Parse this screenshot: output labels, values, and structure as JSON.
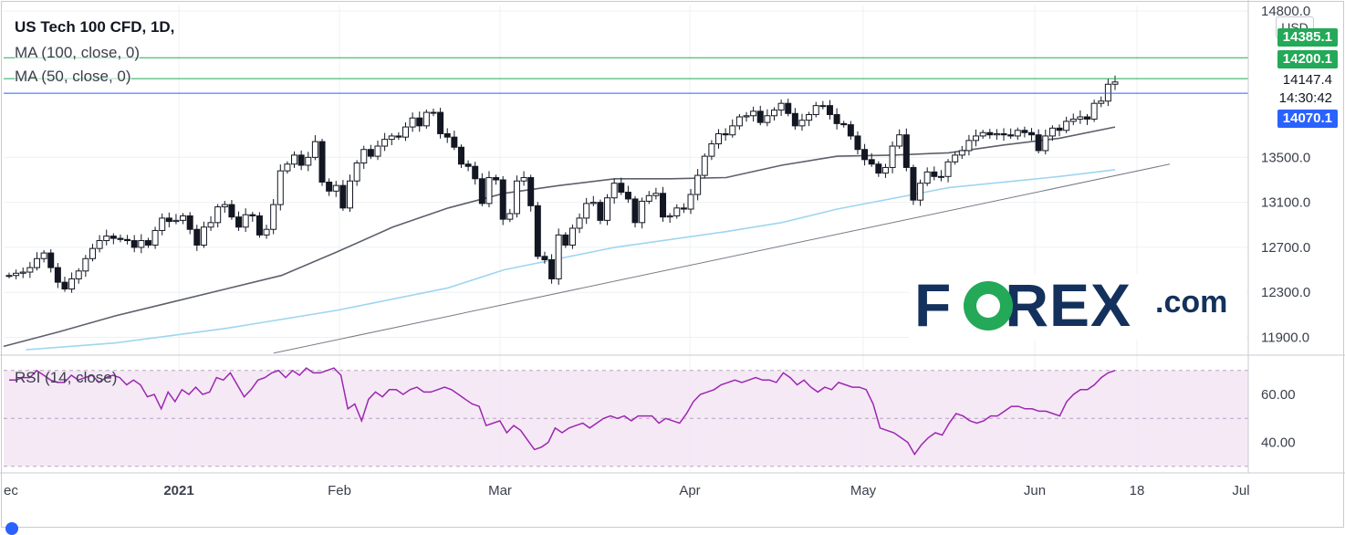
{
  "header": {
    "title": "US Tech 100 CFD, 1D, ",
    "ma100_label": "MA (100, close, 0)",
    "ma50_label": "MA (50, close, 0)",
    "rsi_label": "RSI (14, close)",
    "currency": "USD"
  },
  "price_tags": {
    "top_tag": "14385.1",
    "top_tag_color": "#23a957",
    "ma_tag": "14200.1",
    "ma_tag_color": "#23a957",
    "last_price": "14147.4",
    "countdown": "14:30:42",
    "current_tag": "14070.1",
    "current_tag_color": "#2962ff"
  },
  "logo": {
    "text": "FOREX",
    "suffix": ".com"
  },
  "chart_data": [
    {
      "type": "candlestick",
      "title": "US Tech 100 CFD, 1D",
      "y_ticks": [
        "14800.0",
        "13500.0",
        "13100.0",
        "12700.0",
        "12300.0",
        "11900.0"
      ],
      "y_tick_values": [
        14800,
        13500,
        13100,
        12700,
        12300,
        11900
      ],
      "x_ticks": [
        "ec",
        "2021",
        "Feb",
        "Mar",
        "Apr",
        "May",
        "Jun",
        "18",
        "Jul"
      ],
      "ylim": [
        11750,
        14850
      ],
      "horizontal_lines": [
        14385.1,
        14200.1,
        14070.1
      ],
      "close_series_start": 12450,
      "close_series": [
        12450,
        12470,
        12480,
        12520,
        12600,
        12650,
        12520,
        12390,
        12330,
        12420,
        12490,
        12600,
        12690,
        12760,
        12800,
        12780,
        12770,
        12760,
        12700,
        12760,
        12720,
        12850,
        12960,
        12930,
        12940,
        12980,
        12860,
        12720,
        12880,
        12920,
        13060,
        13080,
        12970,
        12880,
        12990,
        12980,
        12810,
        12860,
        13080,
        13380,
        13440,
        13520,
        13430,
        13500,
        13640,
        13280,
        13200,
        13250,
        13050,
        13290,
        13450,
        13570,
        13510,
        13600,
        13660,
        13690,
        13680,
        13770,
        13850,
        13780,
        13900,
        13900,
        13710,
        13680,
        13590,
        13440,
        13420,
        13310,
        13090,
        13320,
        13300,
        12950,
        13000,
        13290,
        13320,
        13070,
        12620,
        12590,
        12420,
        12810,
        12720,
        12870,
        12960,
        13090,
        13100,
        12940,
        13140,
        13270,
        13190,
        13130,
        12920,
        13110,
        13160,
        13180,
        12970,
        12980,
        13050,
        13040,
        13170,
        13340,
        13510,
        13620,
        13710,
        13700,
        13780,
        13860,
        13870,
        13910,
        13810,
        13870,
        13920,
        13980,
        13890,
        13780,
        13830,
        13880,
        13960,
        13960,
        13880,
        13800,
        13790,
        13690,
        13570,
        13480,
        13440,
        13360,
        13410,
        13600,
        13700,
        13410,
        13120,
        13270,
        13370,
        13330,
        13330,
        13460,
        13520,
        13560,
        13650,
        13690,
        13720,
        13700,
        13710,
        13700,
        13690,
        13740,
        13720,
        13700,
        13560,
        13690,
        13760,
        13740,
        13820,
        13840,
        13860,
        13840,
        13980,
        14000,
        14150,
        14170
      ]
    },
    {
      "type": "line",
      "title": "MA (100, close, 0)",
      "color": "#9fd5f0",
      "points": [
        [
          0.02,
          11790
        ],
        [
          0.1,
          11850
        ],
        [
          0.2,
          11980
        ],
        [
          0.3,
          12140
        ],
        [
          0.4,
          12340
        ],
        [
          0.45,
          12500
        ],
        [
          0.55,
          12700
        ],
        [
          0.65,
          12840
        ],
        [
          0.7,
          12920
        ],
        [
          0.75,
          13040
        ],
        [
          0.85,
          13230
        ],
        [
          0.95,
          13330
        ],
        [
          1.0,
          13390
        ]
      ]
    },
    {
      "type": "line",
      "title": "MA (50, close, 0)",
      "color": "#5d606b",
      "points": [
        [
          0.0,
          11820
        ],
        [
          0.05,
          11950
        ],
        [
          0.1,
          12090
        ],
        [
          0.15,
          12210
        ],
        [
          0.2,
          12330
        ],
        [
          0.25,
          12450
        ],
        [
          0.3,
          12660
        ],
        [
          0.35,
          12880
        ],
        [
          0.4,
          13050
        ],
        [
          0.45,
          13180
        ],
        [
          0.5,
          13250
        ],
        [
          0.55,
          13310
        ],
        [
          0.6,
          13310
        ],
        [
          0.65,
          13320
        ],
        [
          0.7,
          13430
        ],
        [
          0.75,
          13510
        ],
        [
          0.8,
          13520
        ],
        [
          0.85,
          13540
        ],
        [
          0.9,
          13610
        ],
        [
          0.95,
          13670
        ],
        [
          1.0,
          13770
        ]
      ]
    },
    {
      "type": "line",
      "title": "RSI (14, close)",
      "color": "#9c27b0",
      "y_ticks": [
        "60.00",
        "40.00"
      ],
      "y_tick_values": [
        60,
        40
      ],
      "ylim": [
        28,
        76
      ],
      "band": [
        30,
        70
      ],
      "values": [
        66,
        66,
        67,
        67,
        70,
        68,
        66,
        65,
        65,
        68,
        66,
        67,
        68,
        65,
        67,
        68,
        67,
        64,
        66,
        64,
        59,
        60,
        54,
        61,
        57,
        62,
        60,
        63,
        60,
        61,
        67,
        66,
        69,
        64,
        59,
        62,
        66,
        67,
        69,
        70,
        67,
        70,
        68,
        71,
        69,
        69,
        70,
        71,
        68,
        54,
        56,
        49,
        58,
        61,
        59,
        62,
        62,
        60,
        62,
        63,
        61,
        61,
        62,
        63,
        62,
        60,
        58,
        56,
        55,
        47,
        48,
        49,
        44,
        47,
        45,
        41,
        37,
        38,
        40,
        46,
        44,
        46,
        47,
        48,
        46,
        48,
        50,
        51,
        50,
        51,
        49,
        51,
        51,
        51,
        48,
        50,
        49,
        48,
        52,
        57,
        60,
        61,
        62,
        64,
        65,
        66,
        65,
        66,
        67,
        66,
        66,
        65,
        69,
        67,
        64,
        66,
        63,
        61,
        63,
        62,
        65,
        64,
        63,
        63,
        62,
        56,
        46,
        45,
        44,
        42,
        40,
        35,
        39,
        42,
        44,
        43,
        48,
        52,
        51,
        49,
        48,
        49,
        51,
        51,
        53,
        55,
        55,
        54,
        54,
        53,
        53,
        52,
        51,
        57,
        60,
        62,
        62,
        64,
        67,
        69,
        70
      ]
    }
  ]
}
